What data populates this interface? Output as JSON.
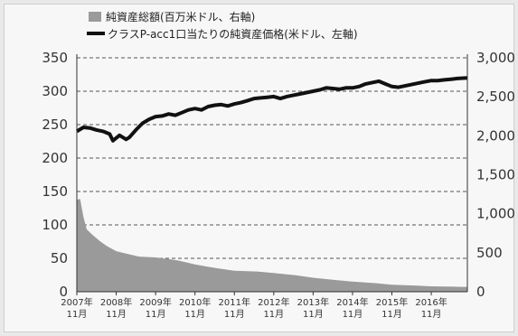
{
  "chart_data": {
    "type": "area",
    "legend": {
      "placement": "top-center",
      "entries": [
        {
          "label": "純資産総額(百万米ドル、右軸)",
          "kind": "area",
          "color": "#9a9a9a"
        },
        {
          "label": "クラスP-acc1口当たりの純資産価格(米ドル、左軸)",
          "kind": "line",
          "color": "#111111"
        }
      ]
    },
    "left_axis": {
      "ylim": [
        0,
        350
      ],
      "ticks": [
        "0",
        "50",
        "100",
        "150",
        "200",
        "250",
        "300",
        "350"
      ]
    },
    "right_axis": {
      "ylim": [
        0,
        3000
      ],
      "ticks": [
        "0",
        "500",
        "1,000",
        "1,500",
        "2,000",
        "2,500",
        "3,000"
      ]
    },
    "grid": "horizontal dashed",
    "x_ticks": [
      {
        "year": "2007年",
        "month": "11月"
      },
      {
        "year": "2008年",
        "month": "11月"
      },
      {
        "year": "2009年",
        "month": "11月"
      },
      {
        "year": "2010年",
        "month": "11月"
      },
      {
        "year": "2011年",
        "month": "11月"
      },
      {
        "year": "2012年",
        "month": "11月"
      },
      {
        "year": "2013年",
        "month": "11月"
      },
      {
        "year": "2014年",
        "month": "11月"
      },
      {
        "year": "2015年",
        "month": "11月"
      },
      {
        "year": "2016年",
        "month": "11月"
      }
    ],
    "x_range": [
      "2007-11",
      "2017-10"
    ],
    "series": [
      {
        "name": "純資産総額(百万米ドル、右軸)",
        "axis": "right",
        "type": "area",
        "color": "#9a9a9a",
        "points": [
          [
            "2007-11",
            1180
          ],
          [
            "2007-12",
            1190
          ],
          [
            "2008-01",
            960
          ],
          [
            "2008-02",
            800
          ],
          [
            "2008-03",
            760
          ],
          [
            "2008-04",
            720
          ],
          [
            "2008-06",
            650
          ],
          [
            "2008-08",
            590
          ],
          [
            "2008-11",
            520
          ],
          [
            "2009-03",
            480
          ],
          [
            "2009-06",
            450
          ],
          [
            "2009-11",
            440
          ],
          [
            "2010-03",
            420
          ],
          [
            "2010-06",
            400
          ],
          [
            "2010-11",
            350
          ],
          [
            "2011-03",
            320
          ],
          [
            "2011-06",
            300
          ],
          [
            "2011-11",
            270
          ],
          [
            "2012-06",
            260
          ],
          [
            "2012-11",
            240
          ],
          [
            "2013-06",
            210
          ],
          [
            "2013-11",
            180
          ],
          [
            "2014-06",
            150
          ],
          [
            "2014-11",
            130
          ],
          [
            "2015-06",
            110
          ],
          [
            "2015-11",
            90
          ],
          [
            "2016-06",
            80
          ],
          [
            "2016-11",
            70
          ],
          [
            "2017-06",
            65
          ],
          [
            "2017-10",
            60
          ]
        ]
      },
      {
        "name": "クラスP-acc1口当たりの純資産価格(米ドル、左軸)",
        "axis": "left",
        "type": "line",
        "color": "#111111",
        "points": [
          [
            "2007-11",
            240
          ],
          [
            "2008-01",
            246
          ],
          [
            "2008-03",
            245
          ],
          [
            "2008-05",
            242
          ],
          [
            "2008-07",
            240
          ],
          [
            "2008-09",
            236
          ],
          [
            "2008-10",
            226
          ],
          [
            "2008-12",
            234
          ],
          [
            "2009-02",
            228
          ],
          [
            "2009-03",
            231
          ],
          [
            "2009-05",
            242
          ],
          [
            "2009-07",
            252
          ],
          [
            "2009-09",
            258
          ],
          [
            "2009-11",
            262
          ],
          [
            "2010-01",
            263
          ],
          [
            "2010-03",
            266
          ],
          [
            "2010-05",
            264
          ],
          [
            "2010-07",
            268
          ],
          [
            "2010-09",
            272
          ],
          [
            "2010-11",
            274
          ],
          [
            "2011-01",
            272
          ],
          [
            "2011-03",
            277
          ],
          [
            "2011-05",
            279
          ],
          [
            "2011-07",
            280
          ],
          [
            "2011-09",
            278
          ],
          [
            "2011-11",
            281
          ],
          [
            "2012-01",
            283
          ],
          [
            "2012-03",
            286
          ],
          [
            "2012-05",
            289
          ],
          [
            "2012-07",
            290
          ],
          [
            "2012-09",
            291
          ],
          [
            "2012-11",
            292
          ],
          [
            "2013-01",
            289
          ],
          [
            "2013-03",
            292
          ],
          [
            "2013-05",
            294
          ],
          [
            "2013-07",
            296
          ],
          [
            "2013-09",
            298
          ],
          [
            "2013-11",
            300
          ],
          [
            "2014-01",
            302
          ],
          [
            "2014-03",
            305
          ],
          [
            "2014-05",
            304
          ],
          [
            "2014-07",
            303
          ],
          [
            "2014-09",
            305
          ],
          [
            "2014-11",
            305
          ],
          [
            "2015-01",
            307
          ],
          [
            "2015-03",
            311
          ],
          [
            "2015-05",
            313
          ],
          [
            "2015-07",
            315
          ],
          [
            "2015-09",
            311
          ],
          [
            "2015-11",
            307
          ],
          [
            "2016-01",
            306
          ],
          [
            "2016-03",
            308
          ],
          [
            "2016-05",
            310
          ],
          [
            "2016-07",
            312
          ],
          [
            "2016-09",
            314
          ],
          [
            "2016-11",
            316
          ],
          [
            "2017-01",
            316
          ],
          [
            "2017-03",
            317
          ],
          [
            "2017-05",
            318
          ],
          [
            "2017-07",
            319
          ],
          [
            "2017-10",
            320
          ]
        ]
      }
    ]
  }
}
